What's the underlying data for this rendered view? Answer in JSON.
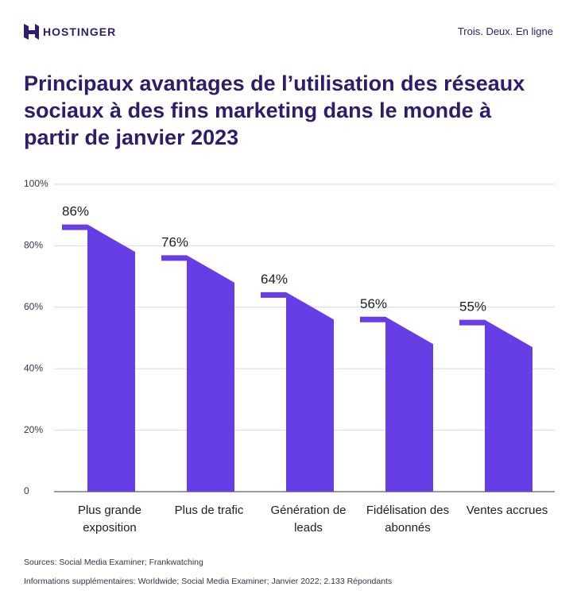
{
  "header": {
    "brand": "HOSTINGER",
    "tagline": "Trois. Deux. En ligne"
  },
  "chart_data": {
    "type": "bar",
    "title": "Principaux avantages de l’utilisation des réseaux sociaux à des fins marketing dans le monde à partir de janvier 2023",
    "categories": [
      "Plus grande exposition",
      "Plus de trafic",
      "Génération de leads",
      "Fidélisation des abonnés",
      "Ventes accrues"
    ],
    "values": [
      86,
      76,
      64,
      56,
      55
    ],
    "value_labels": [
      "86%",
      "76%",
      "64%",
      "56%",
      "55%"
    ],
    "color": "#673de6",
    "ylim": [
      0,
      100
    ],
    "yticks": [
      0,
      {
        "value": 20,
        "label": "20%"
      },
      {
        "value": 40,
        "label": "40%"
      },
      {
        "value": 60,
        "label": "60%"
      },
      {
        "value": 80,
        "label": "80%"
      },
      {
        "value": 100,
        "label": "100%"
      }
    ],
    "grid": true
  },
  "footer": {
    "sources": "Sources: Social Media Examiner; Frankwatching",
    "info": "Informations supplémentaires: Worldwide; Social Media Examiner; Janvier 2022; 2.133 Répondants"
  }
}
